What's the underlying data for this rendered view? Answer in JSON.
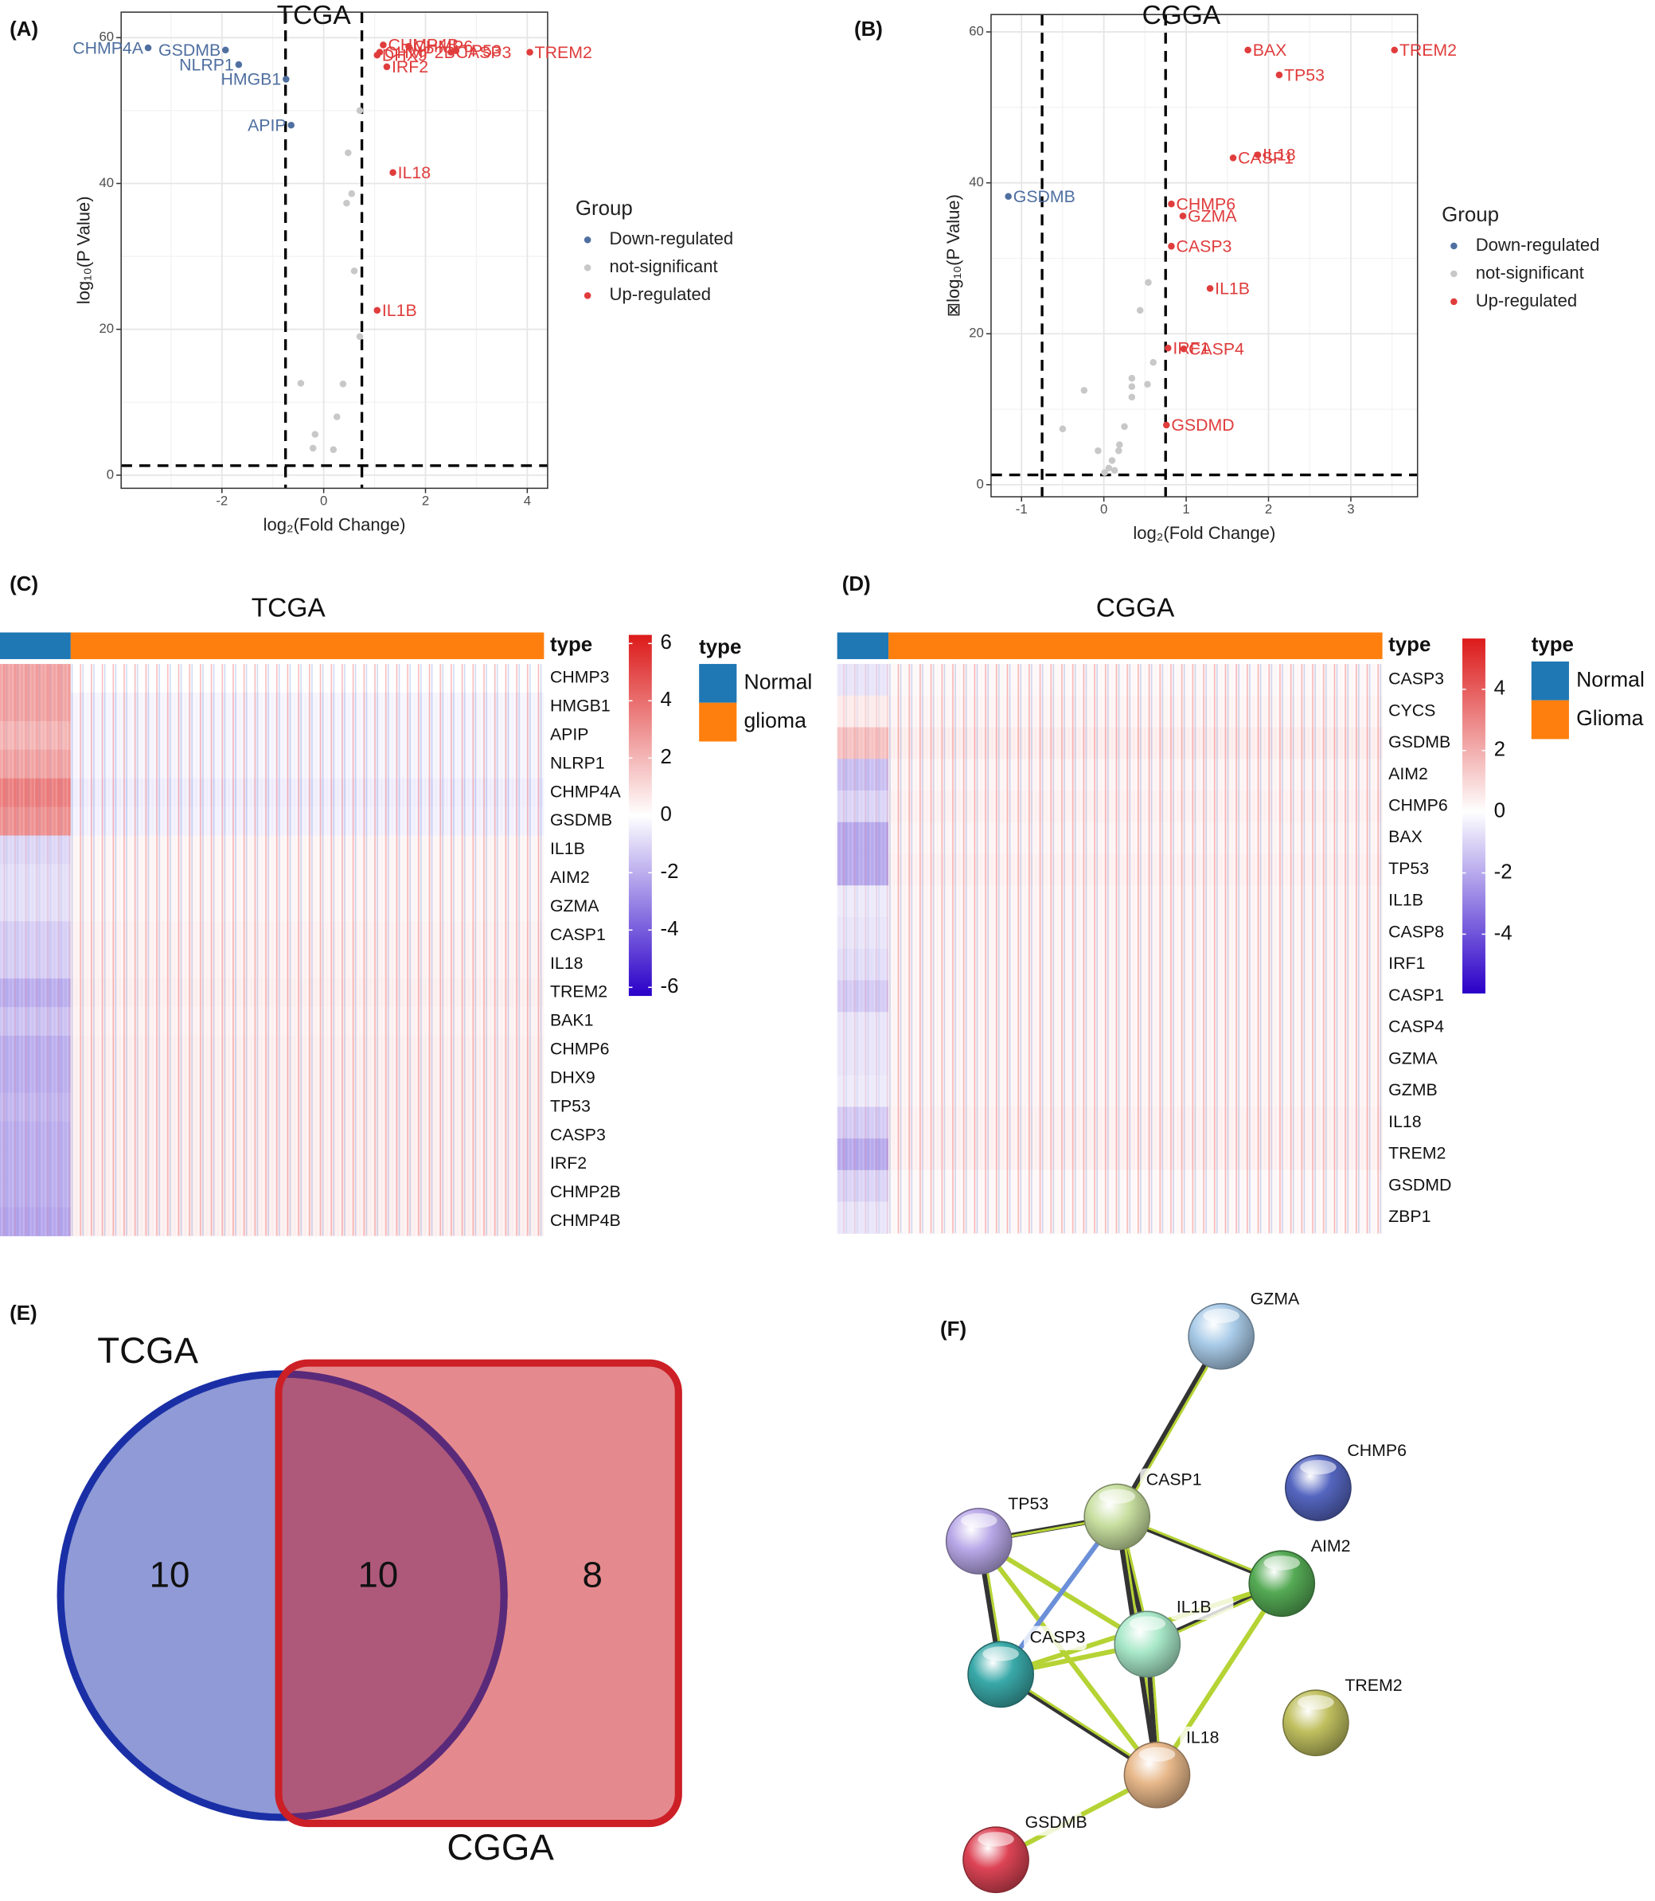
{
  "chart_data": [
    {
      "type": "scatter",
      "panel": "(A)",
      "title": "TCGA",
      "xlabel": "log₂(Fold Change)",
      "ylabel": "log₁₀(P Value)",
      "xlim": [
        -3.98,
        4.4
      ],
      "ylim": [
        -1.8,
        63.5
      ],
      "xticks": [
        -2,
        0,
        2,
        4
      ],
      "yticks": [
        0,
        20,
        40,
        60
      ],
      "grid": true,
      "thresholds": {
        "x": [
          -0.75,
          0.75
        ],
        "y": 1.3
      },
      "legend_title": "Group",
      "series": [
        {
          "name": "Down-regulated",
          "color": "#4f6fa0",
          "x": [
            -3.45,
            -1.93,
            -1.67,
            -0.74,
            -0.64
          ],
          "values": [
            58.6,
            58.3,
            56.3,
            54.3,
            48
          ],
          "labels": [
            "CHMP4A",
            "GSDMB",
            "NLRP1",
            "HMGB1",
            "APIP"
          ]
        },
        {
          "name": "not-significant",
          "color": "#c8c8c8",
          "x": [
            0.71,
            0.48,
            0.55,
            0.45,
            0.6,
            0.71,
            -0.45,
            0.38,
            0.26,
            -0.17,
            -0.21,
            0.19
          ],
          "values": [
            50,
            44.2,
            38.6,
            37.3,
            28,
            19,
            12.6,
            12.5,
            8,
            5.6,
            3.7,
            3.5
          ]
        },
        {
          "name": "Up-regulated",
          "color": "#e03c3c",
          "x": [
            1.1,
            1.17,
            1.05,
            1.24,
            1.67,
            2.5,
            2.6,
            4.05,
            1.36,
            1.05
          ],
          "values": [
            58,
            59,
            57.6,
            56,
            58.8,
            58,
            58.2,
            58,
            41.5,
            22.6
          ],
          "labels": [
            "CHMP2B",
            "CHMP4B",
            "DHX9",
            "IRF2",
            "CHMP6",
            "CASP3",
            "TP53",
            "TREM2",
            "IL18",
            "IL1B"
          ]
        }
      ]
    },
    {
      "type": "scatter",
      "panel": "(B)",
      "title": "CGGA",
      "xlabel": "log₂(Fold Change)",
      "ylabel": "⊠log₁₀(P Value)",
      "xlim": [
        -1.37,
        3.81
      ],
      "ylim": [
        -1.6,
        62.3
      ],
      "xticks": [
        -1,
        0,
        1,
        2,
        3
      ],
      "yticks": [
        0,
        20,
        40,
        60
      ],
      "grid": true,
      "thresholds": {
        "x": [
          -0.75,
          0.75
        ],
        "y": 1.3
      },
      "legend_title": "Group",
      "series": [
        {
          "name": "Down-regulated",
          "color": "#4f6fa0",
          "x": [
            -1.16
          ],
          "values": [
            38.2
          ],
          "labels": [
            "GSDMB"
          ]
        },
        {
          "name": "not-significant",
          "color": "#c8c8c8",
          "x": [
            0.54,
            0.44,
            0.6,
            0.34,
            0.53,
            0.34,
            0.34,
            -0.24,
            -0.5,
            0.25,
            0.19,
            0.18,
            -0.07,
            0.1,
            0.06,
            0.01,
            0.13
          ],
          "values": [
            26.8,
            23.1,
            16.2,
            14.1,
            13.3,
            13,
            11.6,
            12.5,
            7.4,
            7.7,
            5.3,
            4.5,
            4.5,
            3.2,
            2.2,
            1.6,
            1.9
          ]
        },
        {
          "name": "Up-regulated",
          "color": "#e03c3c",
          "x": [
            1.75,
            3.53,
            2.13,
            1.87,
            1.57,
            0.82,
            0.96,
            0.82,
            1.29,
            0.97,
            0.78,
            0.76
          ],
          "values": [
            57.6,
            57.6,
            54.3,
            43.7,
            43.3,
            37.2,
            35.6,
            31.6,
            26,
            18,
            18.1,
            7.9
          ],
          "labels": [
            "BAX",
            "TREM2",
            "TP53",
            "IL18",
            "CASP1",
            "CHMP6",
            "GZMA",
            "CASP3",
            "IL1B",
            "CASP4",
            "IRF1",
            "GSDMD"
          ]
        }
      ]
    },
    {
      "type": "heatmap",
      "panel": "(C)",
      "title": "TCGA",
      "annotation_title": "type",
      "columns": [
        "Normal",
        "glioma"
      ],
      "column_colors": [
        "#1f77b4",
        "#ff7f0e"
      ],
      "rows": [
        "CHMP3",
        "HMGB1",
        "APIP",
        "NLRP1",
        "CHMP4A",
        "GSDMB",
        "IL1B",
        "AIM2",
        "GZMA",
        "CASP1",
        "IL18",
        "TREM2",
        "BAK1",
        "CHMP6",
        "DHX9",
        "TP53",
        "CASP3",
        "IRF2",
        "CHMP2B",
        "CHMP4B"
      ],
      "values": [
        [
          2.5,
          0
        ],
        [
          2.5,
          -0.3
        ],
        [
          2,
          -0.3
        ],
        [
          2.5,
          -0.3
        ],
        [
          3.5,
          -0.5
        ],
        [
          3,
          -0.4
        ],
        [
          -1,
          0.3
        ],
        [
          -0.8,
          0.3
        ],
        [
          -0.8,
          0.3
        ],
        [
          -1.2,
          0.4
        ],
        [
          -1.2,
          0.4
        ],
        [
          -2,
          0.5
        ],
        [
          -1.5,
          0.4
        ],
        [
          -2,
          0.5
        ],
        [
          -2,
          0.5
        ],
        [
          -1.8,
          0.5
        ],
        [
          -2,
          0.5
        ],
        [
          -2,
          0.5
        ],
        [
          -2,
          0.5
        ],
        [
          -2.2,
          0.5
        ]
      ],
      "colorlim": [
        -6.3,
        6.3
      ],
      "colorticks": [
        6,
        4,
        2,
        0,
        -2,
        -4,
        -6
      ],
      "colors": [
        "#2a00c8",
        "#ffffff",
        "#dc1a1a"
      ]
    },
    {
      "type": "heatmap",
      "panel": "(D)",
      "title": "CGGA",
      "annotation_title": "type",
      "columns": [
        "Normal",
        "Glioma"
      ],
      "column_colors": [
        "#1f77b4",
        "#ff7f0e"
      ],
      "rows": [
        "CASP3",
        "CYCS",
        "GSDMB",
        "AIM2",
        "CHMP6",
        "BAX",
        "TP53",
        "IL1B",
        "CASP8",
        "IRF1",
        "CASP1",
        "CASP4",
        "GZMA",
        "GZMB",
        "IL18",
        "TREM2",
        "GSDMD",
        "ZBP1"
      ],
      "values": [
        [
          -0.6,
          0.2
        ],
        [
          0.5,
          0.3
        ],
        [
          1.5,
          0.5
        ],
        [
          -1.5,
          0.3
        ],
        [
          -1,
          0.4
        ],
        [
          -2,
          0.3
        ],
        [
          -2,
          0.4
        ],
        [
          -0.5,
          0.3
        ],
        [
          -0.6,
          0.3
        ],
        [
          -0.8,
          0.3
        ],
        [
          -1.2,
          0.3
        ],
        [
          -0.6,
          0.3
        ],
        [
          -0.6,
          0.3
        ],
        [
          -0.5,
          0.3
        ],
        [
          -1.2,
          0.4
        ],
        [
          -2,
          0.4
        ],
        [
          -1,
          0.2
        ],
        [
          -0.6,
          0.2
        ]
      ],
      "colorlim": [
        -5.94,
        5.66
      ],
      "colorticks": [
        4,
        2,
        0,
        -2,
        -4
      ],
      "colors": [
        "#2a00c8",
        "#ffffff",
        "#dc1a1a"
      ]
    },
    {
      "type": "venn",
      "panel": "(E)",
      "sets": [
        "TCGA",
        "CGGA"
      ],
      "values": [
        10,
        10,
        8
      ],
      "colors": [
        "#1a2fa6",
        "#cc1f26"
      ]
    },
    {
      "type": "network",
      "panel": "(F)",
      "nodes": [
        {
          "label": "GZMA",
          "color": "#a9cbe8"
        },
        {
          "label": "CHMP6",
          "color": "#5566c0"
        },
        {
          "label": "CASP1",
          "color": "#c8dfa0"
        },
        {
          "label": "TP53",
          "color": "#b9a8e8"
        },
        {
          "label": "AIM2",
          "color": "#55aa55"
        },
        {
          "label": "IL1B",
          "color": "#a8e8c8"
        },
        {
          "label": "CASP3",
          "color": "#3aa9a9"
        },
        {
          "label": "TREM2",
          "color": "#c0c060"
        },
        {
          "label": "IL18",
          "color": "#e8b88a"
        },
        {
          "label": "GSDMB",
          "color": "#dd4455"
        }
      ],
      "edges": [
        {
          "from": 0,
          "to": 2,
          "color": "#333333"
        },
        {
          "from": 3,
          "to": 2,
          "color": "#333333"
        },
        {
          "from": 3,
          "to": 6,
          "color": "#333333"
        },
        {
          "from": 3,
          "to": 5,
          "color": "#b5d334"
        },
        {
          "from": 3,
          "to": 8,
          "color": "#b5d334"
        },
        {
          "from": 2,
          "to": 4,
          "color": "#333333"
        },
        {
          "from": 2,
          "to": 5,
          "color": "#333333"
        },
        {
          "from": 2,
          "to": 6,
          "color": "#6b8fd8"
        },
        {
          "from": 2,
          "to": 8,
          "color": "#333333"
        },
        {
          "from": 4,
          "to": 5,
          "color": "#333333"
        },
        {
          "from": 4,
          "to": 8,
          "color": "#b5d334"
        },
        {
          "from": 4,
          "to": 6,
          "color": "#b5d334"
        },
        {
          "from": 5,
          "to": 6,
          "color": "#b5d334"
        },
        {
          "from": 5,
          "to": 8,
          "color": "#333333"
        },
        {
          "from": 6,
          "to": 8,
          "color": "#333333"
        },
        {
          "from": 8,
          "to": 9,
          "color": "#b5d334"
        }
      ]
    }
  ]
}
